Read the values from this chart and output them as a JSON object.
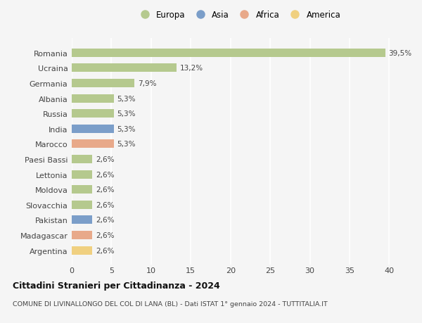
{
  "countries": [
    "Romania",
    "Ucraina",
    "Germania",
    "Albania",
    "Russia",
    "India",
    "Marocco",
    "Paesi Bassi",
    "Lettonia",
    "Moldova",
    "Slovacchia",
    "Pakistan",
    "Madagascar",
    "Argentina"
  ],
  "values": [
    39.5,
    13.2,
    7.9,
    5.3,
    5.3,
    5.3,
    5.3,
    2.6,
    2.6,
    2.6,
    2.6,
    2.6,
    2.6,
    2.6
  ],
  "labels": [
    "39,5%",
    "13,2%",
    "7,9%",
    "5,3%",
    "5,3%",
    "5,3%",
    "5,3%",
    "2,6%",
    "2,6%",
    "2,6%",
    "2,6%",
    "2,6%",
    "2,6%",
    "2,6%"
  ],
  "continents": [
    "Europa",
    "Europa",
    "Europa",
    "Europa",
    "Europa",
    "Asia",
    "Africa",
    "Europa",
    "Europa",
    "Europa",
    "Europa",
    "Asia",
    "Africa",
    "America"
  ],
  "colors": {
    "Europa": "#b5c98e",
    "Asia": "#7b9ec9",
    "Africa": "#e8a98a",
    "America": "#f0d080"
  },
  "legend_order": [
    "Europa",
    "Asia",
    "Africa",
    "America"
  ],
  "xlim": [
    0,
    42
  ],
  "xticks": [
    0,
    5,
    10,
    15,
    20,
    25,
    30,
    35,
    40
  ],
  "title": "Cittadini Stranieri per Cittadinanza - 2024",
  "subtitle": "COMUNE DI LIVINALLONGO DEL COL DI LANA (BL) - Dati ISTAT 1° gennaio 2024 - TUTTITALIA.IT",
  "background_color": "#f5f5f5",
  "grid_color": "#ffffff",
  "bar_height": 0.55
}
